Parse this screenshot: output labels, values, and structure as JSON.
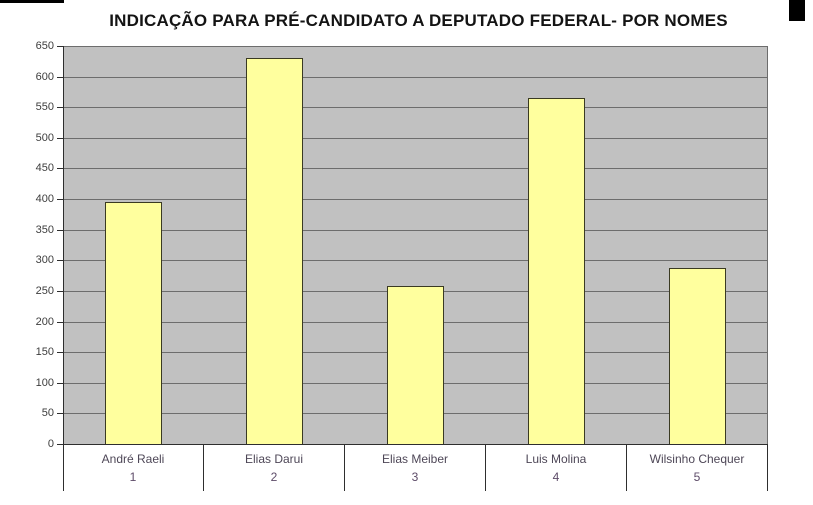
{
  "title": "INDICAÇÃO PARA PRÉ-CANDIDATO A DEPUTADO FEDERAL- POR NOMES",
  "chart_data": {
    "type": "bar",
    "title": "INDICAÇÃO PARA PRÉ-CANDIDATO A DEPUTADO FEDERAL- POR NOMES",
    "categories": [
      "André Raeli",
      "Elias Darui",
      "Elias Meiber",
      "Luis Molina",
      "Wilsinho Chequer"
    ],
    "category_axis_numbers": [
      "1",
      "2",
      "3",
      "4",
      "5"
    ],
    "values": [
      395,
      630,
      258,
      565,
      287
    ],
    "xlabel": "",
    "ylabel": "",
    "ylim": [
      0,
      650
    ],
    "ytick_step": 50,
    "yticks": [
      0,
      50,
      100,
      150,
      200,
      250,
      300,
      350,
      400,
      450,
      500,
      550,
      600,
      650
    ],
    "grid": true,
    "legend": false,
    "colors": {
      "title": "#141414",
      "plot_bg": "#c1c1c1",
      "bar_fill": "#ffff9e",
      "bar_border": "#3a3a22",
      "gridline": "#6d6d6d",
      "axis": "#2e2e2e",
      "tick_label": "#3d3d3d",
      "category_label": "#4e4757",
      "category_number": "#5d4b68"
    }
  }
}
